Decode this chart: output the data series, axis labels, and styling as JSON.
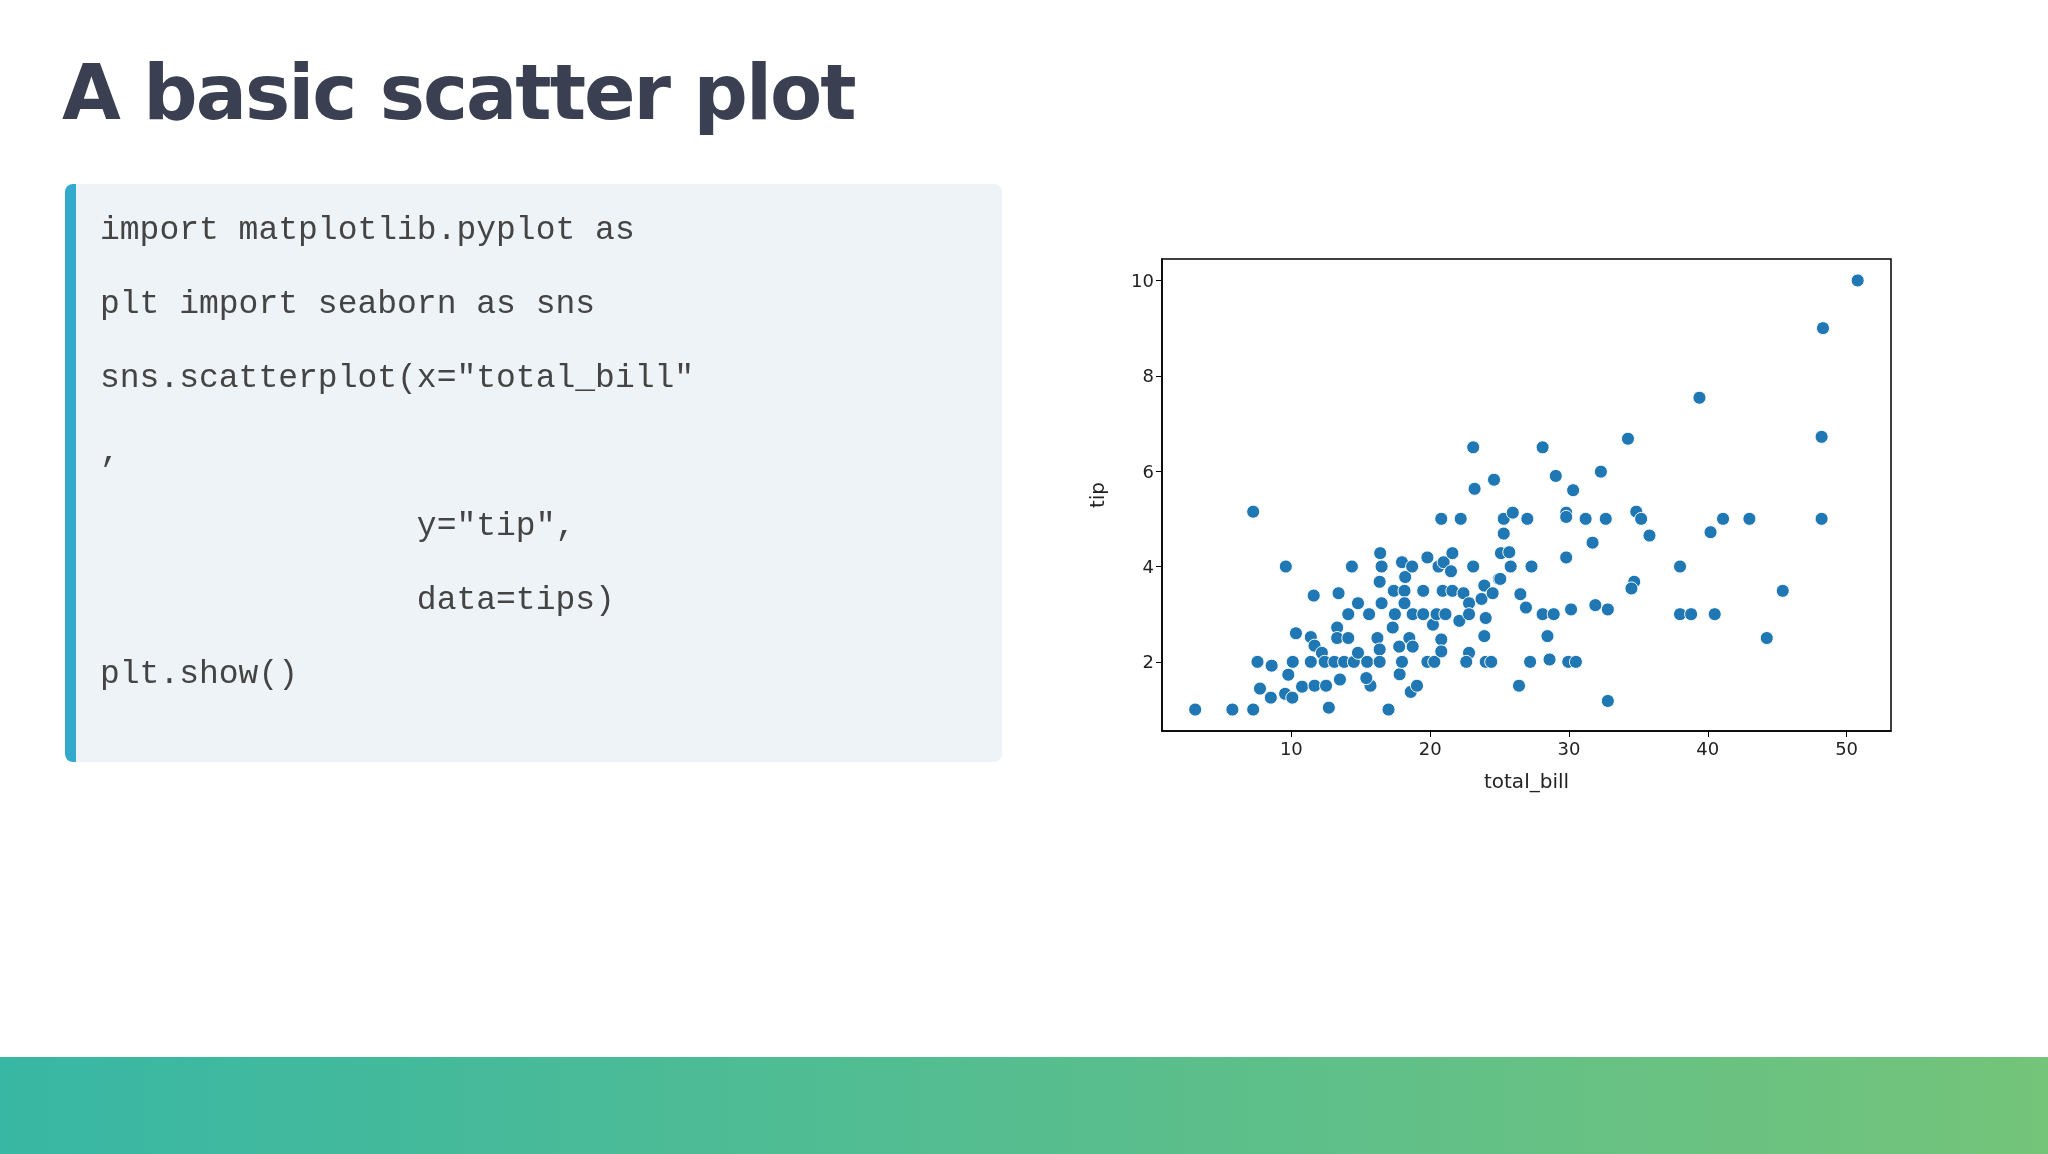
{
  "chart_data": {
    "type": "scatter",
    "title": "A basic scatter plot",
    "annotations": [
      "import matplotlib.pyplot as",
      "plt import seaborn as sns",
      "sns.scatterplot(x=\"total_bill\"",
      ",",
      "                y=\"tip\",",
      "                data=tips)",
      "plt.show()"
    ],
    "xlabel": "total_bill",
    "ylabel": "tip",
    "xlim": [
      0.68,
      53.2
    ],
    "ylim": [
      0.55,
      10.45
    ],
    "xticks": [
      10,
      20,
      30,
      40,
      50
    ],
    "yticks": [
      2,
      4,
      6,
      8,
      10
    ],
    "grid": false,
    "marker": "circle",
    "series": [
      {
        "color": "#1f77b4",
        "x": [
          3.07,
          5.75,
          7.25,
          7.25,
          7.56,
          7.74,
          8.58,
          8.52,
          9.6,
          9.78,
          9.55,
          10.1,
          10.33,
          10.07,
          10.77,
          11.61,
          11.4,
          11.67,
          11.67,
          11.4,
          12.2,
          12.4,
          12.5,
          12.7,
          13.3,
          13.4,
          13.3,
          13.1,
          13.5,
          13.8,
          14.1,
          14.36,
          14.5,
          14.1,
          14.8,
          14.8,
          15.6,
          15.46,
          15.7,
          15.4,
          16.2,
          16.36,
          16.36,
          16.4,
          16.36,
          16.5,
          16.5,
          17.46,
          17.38,
          18.15,
          18.15,
          18.2,
          17.97,
          18.7,
          17.0,
          17.3,
          17.77,
          17.8,
          17.97,
          18.5,
          18.74,
          18.6,
          19.05,
          18.74,
          19.5,
          19.8,
          19.5,
          19.8,
          20.3,
          20.2,
          20.46,
          20.6,
          20.97,
          20.8,
          20.9,
          21.1,
          20.8,
          20.8,
          21.5,
          21.6,
          21.6,
          22.1,
          22.2,
          22.4,
          22.8,
          22.8,
          22.8,
          22.6,
          23.1,
          23.2,
          23.1,
          23.7,
          23.9,
          24.0,
          23.9,
          24.0,
          24.4,
          24.5,
          24.6,
          24.95,
          25.3,
          25.3,
          25.1,
          25.7,
          25.8,
          25.95,
          25.05,
          27.0,
          27.3,
          26.5,
          26.9,
          28.1,
          29.05,
          30.3,
          29.8,
          29.8,
          29.8,
          28.1,
          28.9,
          30.15,
          28.45,
          28.6,
          27.2,
          29.95,
          30.5,
          26.4,
          31.2,
          32.65,
          32.3,
          31.7,
          31.9,
          32.8,
          32.8,
          34.25,
          34.85,
          35.2,
          35.8,
          34.7,
          34.5,
          38.0,
          38.0,
          38.8,
          39.4,
          40.2,
          40.5,
          41.1,
          43.0,
          44.25,
          45.4,
          48.3,
          48.2,
          48.2,
          50.8
        ],
        "values": [
          1.0,
          1.0,
          1.0,
          5.15,
          2.0,
          1.44,
          1.92,
          1.25,
          4.0,
          1.73,
          1.33,
          2.0,
          2.6,
          1.25,
          1.48,
          3.39,
          2.52,
          2.34,
          1.5,
          2.0,
          2.19,
          2.0,
          1.5,
          1.04,
          2.72,
          3.44,
          2.5,
          2.0,
          1.63,
          2.0,
          2.5,
          4.0,
          2.0,
          3.0,
          3.23,
          2.19,
          3.0,
          2.0,
          1.5,
          1.66,
          2.5,
          2.26,
          2.0,
          4.28,
          3.68,
          4.0,
          3.23,
          3.0,
          3.49,
          3.49,
          3.23,
          3.78,
          4.09,
          4.0,
          1.0,
          2.72,
          2.32,
          1.74,
          2.0,
          2.5,
          2.32,
          1.37,
          1.5,
          3.0,
          3.49,
          4.19,
          3.0,
          2.0,
          2.0,
          2.78,
          3.0,
          4.0,
          4.09,
          5.0,
          3.49,
          3.0,
          2.47,
          2.22,
          3.9,
          4.28,
          3.49,
          2.86,
          5.0,
          3.44,
          3.23,
          3.0,
          2.19,
          2.0,
          6.5,
          5.63,
          4.0,
          3.32,
          3.6,
          2.92,
          2.54,
          2.0,
          2.0,
          3.44,
          5.82,
          3.74,
          5.0,
          4.69,
          4.28,
          4.3,
          4.0,
          5.13,
          3.74,
          5.0,
          4.0,
          3.42,
          3.14,
          6.5,
          5.9,
          5.6,
          5.13,
          5.04,
          4.19,
          3.0,
          3.0,
          3.1,
          2.54,
          2.05,
          2.0,
          2.0,
          2.0,
          1.5,
          5.0,
          5.0,
          5.99,
          4.5,
          3.19,
          3.1,
          1.18,
          6.68,
          5.15,
          5.0,
          4.65,
          3.68,
          3.54,
          4.0,
          3.0,
          3.0,
          7.54,
          4.72,
          3.0,
          5.0,
          5.0,
          2.5,
          3.49,
          9.0,
          6.72,
          5.0,
          10.0
        ]
      }
    ]
  }
}
